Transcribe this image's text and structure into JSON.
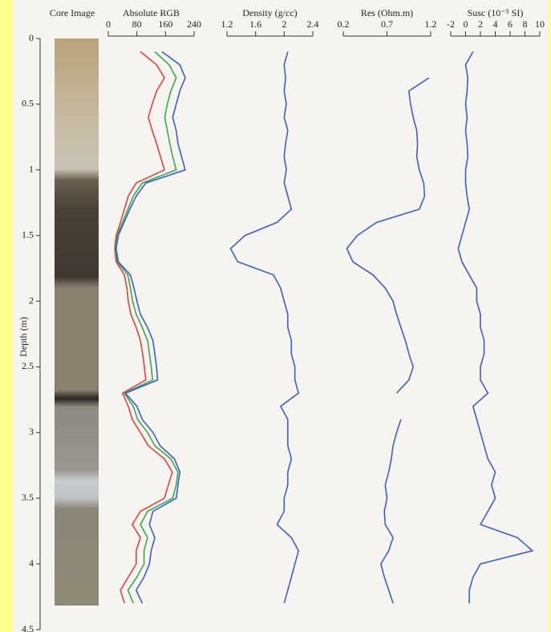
{
  "chart_data": [
    {
      "type": "image",
      "title": "Core Image",
      "xlabel": "Depth (m)",
      "xlim": [
        0,
        4.5
      ],
      "xticks": [
        0,
        0.5,
        1,
        1.5,
        2,
        2.5,
        3,
        3.5,
        4,
        4.5
      ]
    },
    {
      "type": "line",
      "title": "Absolute RGB",
      "xlim": [
        0,
        4.5
      ],
      "ylim": [
        0,
        240
      ],
      "yticks": [
        0,
        80,
        160,
        240
      ],
      "x": [
        0.1,
        0.2,
        0.3,
        0.4,
        0.5,
        0.6,
        0.7,
        0.8,
        0.9,
        1.0,
        1.1,
        1.2,
        1.3,
        1.4,
        1.5,
        1.6,
        1.7,
        1.8,
        1.9,
        2.0,
        2.1,
        2.2,
        2.3,
        2.4,
        2.5,
        2.6,
        2.7,
        2.8,
        2.9,
        3.0,
        3.1,
        3.2,
        3.3,
        3.4,
        3.5,
        3.6,
        3.7,
        3.8,
        3.9,
        4.0,
        4.1,
        4.2,
        4.3
      ],
      "series": [
        {
          "color": "#e8403a",
          "values": [
            90,
            135,
            157,
            135,
            123,
            112,
            123,
            135,
            146,
            157,
            78,
            56,
            45,
            34,
            22,
            18,
            22,
            45,
            52,
            56,
            63,
            78,
            90,
            96,
            101,
            105,
            40,
            56,
            67,
            90,
            112,
            157,
            179,
            168,
            157,
            90,
            67,
            90,
            78,
            78,
            56,
            34,
            45
          ]
        },
        {
          "color": "#3aa84a",
          "values": [
            130,
            170,
            190,
            175,
            165,
            158,
            165,
            172,
            180,
            190,
            95,
            70,
            55,
            40,
            25,
            20,
            25,
            55,
            62,
            68,
            78,
            95,
            110,
            115,
            120,
            124,
            45,
            70,
            82,
            110,
            130,
            175,
            195,
            190,
            180,
            110,
            90,
            110,
            100,
            100,
            80,
            55,
            70
          ]
        },
        {
          "color": "#3a5fc8",
          "values": [
            150,
            200,
            215,
            200,
            190,
            180,
            190,
            195,
            205,
            215,
            105,
            78,
            60,
            44,
            28,
            22,
            28,
            62,
            72,
            80,
            90,
            110,
            125,
            130,
            135,
            138,
            48,
            80,
            95,
            125,
            145,
            185,
            200,
            195,
            190,
            125,
            115,
            130,
            120,
            115,
            100,
            78,
            95
          ]
        }
      ]
    },
    {
      "type": "line",
      "title": "Density (g/cc)",
      "xlim": [
        0,
        4.5
      ],
      "ylim": [
        1.2,
        2.4
      ],
      "yticks": [
        1.2,
        1.6,
        2,
        2.4
      ],
      "x": [
        0.1,
        0.2,
        0.3,
        0.4,
        0.5,
        0.6,
        0.7,
        0.8,
        0.9,
        1.0,
        1.1,
        1.2,
        1.3,
        1.4,
        1.5,
        1.6,
        1.7,
        1.8,
        1.9,
        2.0,
        2.1,
        2.2,
        2.3,
        2.4,
        2.5,
        2.6,
        2.7,
        2.8,
        2.9,
        3.0,
        3.1,
        3.2,
        3.3,
        3.4,
        3.5,
        3.6,
        3.7,
        3.8,
        3.9,
        4.0,
        4.1,
        4.2,
        4.3
      ],
      "series": [
        {
          "color": "#3f5fc4",
          "values": [
            2.05,
            2.0,
            2.02,
            2.0,
            2.03,
            2.0,
            2.05,
            2.02,
            2.0,
            2.03,
            2.0,
            2.05,
            2.1,
            1.9,
            1.45,
            1.25,
            1.35,
            1.85,
            1.95,
            2.0,
            2.05,
            2.05,
            2.1,
            2.1,
            2.15,
            2.15,
            2.2,
            1.95,
            2.05,
            2.05,
            2.05,
            2.1,
            2.05,
            2.05,
            2.0,
            2.0,
            1.9,
            2.1,
            2.2,
            2.15,
            2.1,
            2.05,
            2.0
          ]
        }
      ]
    },
    {
      "type": "line",
      "title": "Res (Ohm.m)",
      "xlim": [
        0,
        4.5
      ],
      "ylim": [
        0.2,
        1.2
      ],
      "yticks": [
        0.2,
        0.7,
        1.2
      ],
      "x": [
        0.1,
        0.2,
        0.3,
        0.4,
        0.5,
        0.6,
        0.7,
        0.8,
        0.9,
        1.0,
        1.1,
        1.2,
        1.3,
        1.4,
        1.5,
        1.6,
        1.7,
        1.8,
        1.9,
        2.0,
        2.1,
        2.2,
        2.3,
        2.4,
        2.5,
        2.6,
        2.7,
        2.8,
        2.9,
        3.0,
        3.1,
        3.2,
        3.3,
        3.4,
        3.5,
        3.6,
        3.7,
        3.8,
        3.9,
        4.0,
        4.1,
        4.2,
        4.3
      ],
      "series": [
        {
          "color": "#3f5fc4",
          "values": [
            null,
            null,
            1.18,
            0.95,
            0.97,
            1.0,
            1.04,
            1.05,
            1.04,
            1.07,
            1.12,
            1.13,
            1.07,
            0.58,
            0.36,
            0.24,
            0.31,
            0.54,
            0.68,
            0.77,
            0.81,
            0.86,
            0.91,
            0.95,
            1.0,
            0.95,
            0.81,
            null,
            0.86,
            0.81,
            0.77,
            0.75,
            0.72,
            0.68,
            0.7,
            0.67,
            0.68,
            0.77,
            0.72,
            0.63,
            0.67,
            0.72,
            0.77
          ]
        }
      ]
    },
    {
      "type": "line",
      "title": "Susc (10⁻⁵ SI)",
      "xlim": [
        0,
        4.5
      ],
      "ylim": [
        -2,
        10
      ],
      "yticks": [
        -2,
        0,
        2,
        4,
        6,
        8,
        10
      ],
      "x": [
        0.1,
        0.2,
        0.3,
        0.4,
        0.5,
        0.6,
        0.7,
        0.8,
        0.9,
        1.0,
        1.1,
        1.2,
        1.3,
        1.4,
        1.5,
        1.6,
        1.7,
        1.8,
        1.9,
        2.0,
        2.1,
        2.2,
        2.3,
        2.4,
        2.5,
        2.6,
        2.7,
        2.8,
        2.9,
        3.0,
        3.1,
        3.2,
        3.3,
        3.4,
        3.5,
        3.6,
        3.7,
        3.8,
        3.9,
        4.0,
        4.1,
        4.2,
        4.3
      ],
      "series": [
        {
          "color": "#3f5fc4",
          "values": [
            1,
            0,
            0.3,
            0.2,
            0,
            0.2,
            0,
            0.2,
            0.3,
            0,
            0,
            0.2,
            0.5,
            0,
            -0.5,
            -1,
            -0.5,
            0.5,
            1.5,
            1.5,
            2,
            2,
            2.5,
            2.5,
            2,
            2,
            3,
            1,
            1.5,
            2,
            2.5,
            3,
            4,
            3.5,
            4,
            3,
            2,
            7,
            9,
            2,
            1,
            0.5,
            0.5
          ]
        }
      ]
    }
  ]
}
